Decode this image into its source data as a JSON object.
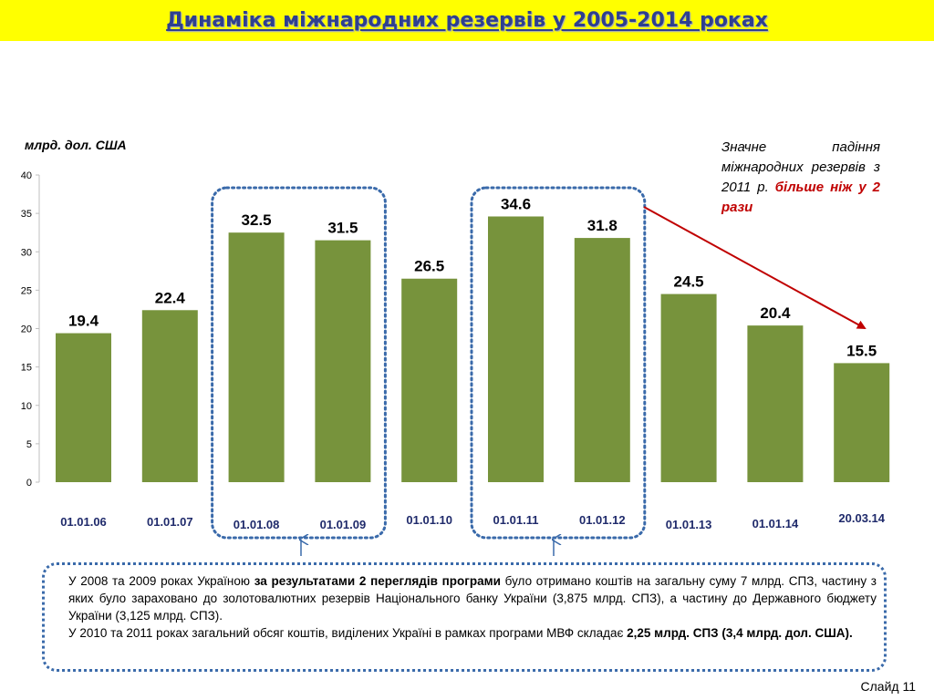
{
  "title": "Динаміка міжнародних резервів у 2005-2014 роках",
  "unit_label": "млрд. дол. США",
  "chart_data": {
    "type": "bar",
    "title": "Динаміка міжнародних резервів у 2005-2014 роках",
    "ylabel": "млрд. дол. США",
    "xlabel": "",
    "ylim": [
      0,
      40
    ],
    "yticks": [
      0,
      5,
      10,
      15,
      20,
      25,
      30,
      35,
      40
    ],
    "categories": [
      "01.01.06",
      "01.01.07",
      "01.01.08",
      "01.01.09",
      "01.01.10",
      "01.01.11",
      "01.01.12",
      "01.01.13",
      "01.01.14",
      "20.03.14"
    ],
    "values": [
      19.4,
      22.4,
      32.5,
      31.5,
      26.5,
      34.6,
      31.8,
      24.5,
      20.4,
      15.5
    ],
    "value_labels": [
      "19.4",
      "22.4",
      "32.5",
      "31.5",
      "26.5",
      "34.6",
      "31.8",
      "24.5",
      "20.4",
      "15.5"
    ],
    "bar_color": "#77933c",
    "highlight_groups": [
      [
        "01.01.08",
        "01.01.09"
      ],
      [
        "01.01.11",
        "01.01.12"
      ]
    ]
  },
  "side_note": {
    "text1": "Значне падіння міжнародних резервів з 2011 р.",
    "text2": "більше ніж у 2 рази"
  },
  "info_box": {
    "p1_a": "У 2008 та 2009 роках Україною ",
    "p1_b": "за результатами 2 переглядів програми",
    "p1_c": " було отримано коштів на загальну суму 7 млрд. СПЗ, частину з яких було зараховано до золотовалютних резервів Національного банку України (3,875 млрд. СПЗ), а частину до Державного бюджету України (3,125 млрд. СПЗ).",
    "p2_a": "У 2010 та 2011 роках загальний обсяг коштів, виділених Україні в рамках програми МВФ складає ",
    "p2_b": "2,25 млрд. СПЗ (3,4 млрд. дол. США)."
  },
  "colors": {
    "title_bg": "#ffff00",
    "title_text": "#2e3f8f",
    "highlight": "#c00000",
    "dotted_border": "#3a6aaa",
    "arrow": "#c00000"
  },
  "slide_number": "Слайд 11"
}
